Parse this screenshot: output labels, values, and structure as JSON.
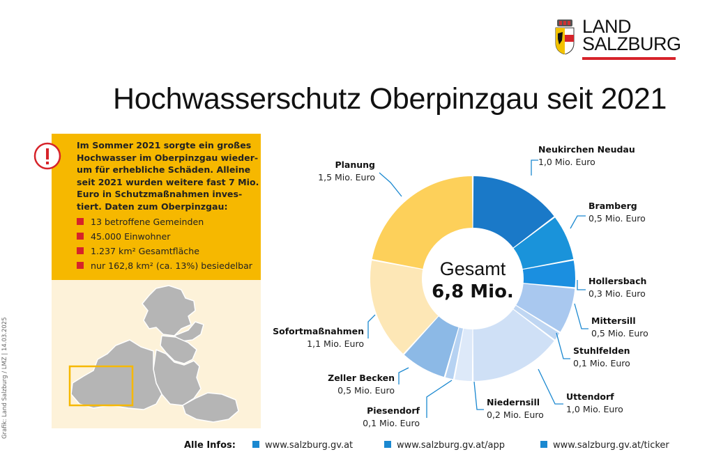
{
  "logo": {
    "line1": "LAND",
    "line2": "SALZBURG"
  },
  "title": "Hochwasserschutz Oberpinzgau seit 2021",
  "info": {
    "text": "Im Sommer 2021 sorgte ein großes Hochwasser im Oberpinzgau wieder-um für erhebliche Schäden. Alleine seit 2021 wurden weitere fast 7 Mio. Euro in Schutzmaßnahmen inves-tiert. Daten zum Oberpinzgau:",
    "bullets": [
      "13 betroffene Gemeinden",
      "45.000 Einwohner",
      "1.237 km² Gesamtfläche",
      "nur 162,8 km² (ca. 13%) besiedelbar"
    ]
  },
  "credit": "Grafik: Land Salzburg / LMZ | 14.03.2025",
  "chart_data": {
    "type": "pie",
    "center_label": "Gesamt",
    "center_value": "6,8 Mio.",
    "unit": "Mio. Euro",
    "slices": [
      {
        "name": "Neukirchen Neudau",
        "value": 1.0,
        "value_label": "1,0 Mio. Euro",
        "color": "#1a79c8"
      },
      {
        "name": "Bramberg",
        "value": 0.5,
        "value_label": "0,5 Mio. Euro",
        "color": "#1a93da"
      },
      {
        "name": "Hollersbach",
        "value": 0.3,
        "value_label": "0,3 Mio. Euro",
        "color": "#1b8fe0"
      },
      {
        "name": "Mittersill",
        "value": 0.5,
        "value_label": "0,5 Mio. Euro",
        "color": "#a9c8ef"
      },
      {
        "name": "Stuhlfelden",
        "value": 0.1,
        "value_label": "0,1 Mio. Euro",
        "color": "#bfd6f2"
      },
      {
        "name": "Uttendorf",
        "value": 1.0,
        "value_label": "1,0 Mio. Euro",
        "color": "#cfe0f6"
      },
      {
        "name": "Niedernsill",
        "value": 0.2,
        "value_label": "0,2 Mio. Euro",
        "color": "#dde9f9"
      },
      {
        "name": "Piesendorf",
        "value": 0.1,
        "value_label": "0,1 Mio. Euro",
        "color": "#b6d2f2"
      },
      {
        "name": "Zeller Becken",
        "value": 0.5,
        "value_label": "0,5 Mio. Euro",
        "color": "#8cb9e6"
      },
      {
        "name": "Sofortmaßnahmen",
        "value": 1.1,
        "value_label": "1,1 Mio. Euro",
        "color": "#fde7b6"
      },
      {
        "name": "Planung",
        "value": 1.5,
        "value_label": "1,5 Mio. Euro",
        "color": "#fdd05a"
      }
    ]
  },
  "footer": {
    "label": "Alle Infos:",
    "links": [
      "www.salzburg.gv.at",
      "www.salzburg.gv.at/app",
      "www.salzburg.gv.at/ticker"
    ],
    "link_color": "#1a88d0"
  }
}
